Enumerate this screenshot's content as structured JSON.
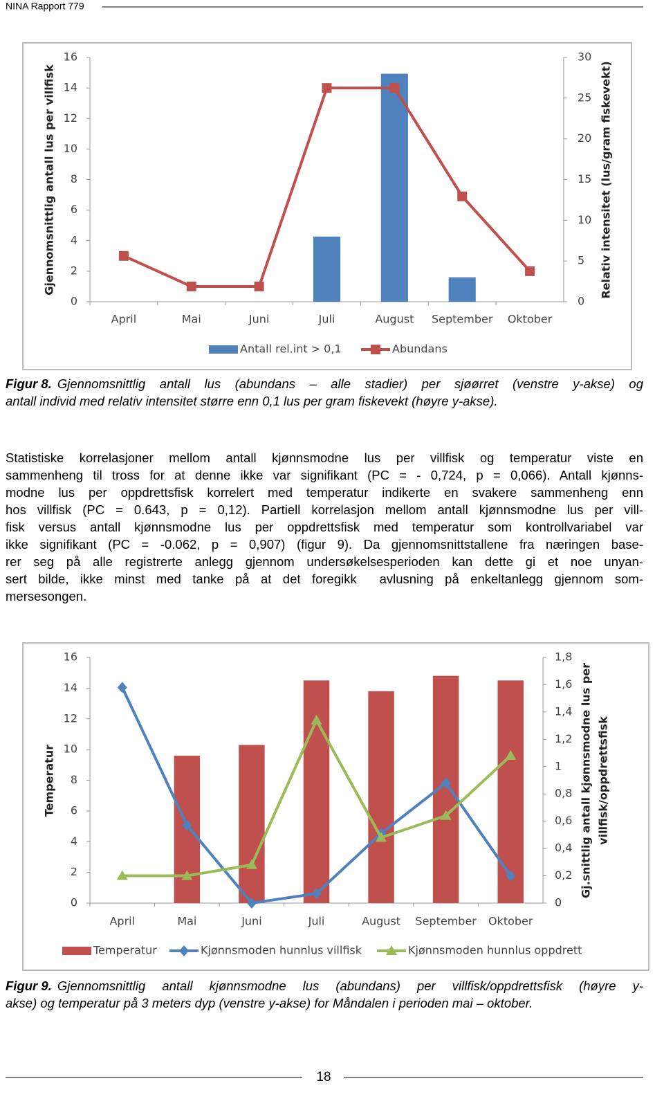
{
  "header": {
    "title": "NINA Rapport 779"
  },
  "chart_data": [
    {
      "type": "combo",
      "y_label": "Gjennomsnittlig antall lus per villfisk",
      "y2_label": "Relativ intensitet (lus/gram fiskevekt)",
      "categories": [
        "April",
        "Mai",
        "Juni",
        "Juli",
        "August",
        "September",
        "Oktober"
      ],
      "series": [
        {
          "name": "Antall rel.int > 0,1",
          "type": "bar",
          "axis": "y2",
          "color": "#4f81bd",
          "values": [
            null,
            null,
            null,
            8,
            28,
            3,
            null
          ]
        },
        {
          "name": "Abundans",
          "type": "line",
          "marker": "square",
          "color": "#c0504d",
          "values": [
            3,
            1,
            1,
            14,
            14,
            6.9,
            2
          ]
        }
      ],
      "ylim": [
        0,
        16
      ],
      "yticks": [
        0,
        2,
        4,
        6,
        8,
        10,
        12,
        14,
        16
      ],
      "y2lim": [
        0,
        30
      ],
      "y2ticks": [
        0,
        5,
        10,
        15,
        20,
        25,
        30
      ],
      "grid": false,
      "legend": "bottom"
    },
    {
      "type": "combo",
      "y_label": "Temperatur",
      "y2_label": [
        "Gj.snittlig antall kjønnsmodne lus per",
        "villfisk/oppdrettsfisk"
      ],
      "categories": [
        "April",
        "Mai",
        "Juni",
        "Juli",
        "August",
        "September",
        "Oktober"
      ],
      "series": [
        {
          "name": "Temperatur",
          "type": "bar",
          "color": "#c0504d",
          "values": [
            null,
            9.6,
            10.3,
            14.5,
            13.8,
            14.8,
            14.5
          ]
        },
        {
          "name": "Kjønnsmoden hunnlus villfisk",
          "type": "line",
          "marker": "diamond",
          "axis": "y2",
          "color": "#4f81bd",
          "values": [
            1.58,
            0.57,
            0,
            0.07,
            0.51,
            0.88,
            0.2
          ]
        },
        {
          "name": "Kjønnsmoden hunnlus oppdrett",
          "type": "line",
          "marker": "triangle",
          "axis": "y2",
          "color": "#9bbb59",
          "values": [
            0.2,
            0.2,
            0.28,
            1.34,
            0.48,
            0.64,
            1.08
          ]
        }
      ],
      "ylim": [
        0,
        16
      ],
      "yticks": [
        0,
        2,
        4,
        6,
        8,
        10,
        12,
        14,
        16
      ],
      "y2lim": [
        0,
        1.8
      ],
      "y2ticks": [
        0,
        {
          "value": 0.2,
          "label": "0,2"
        },
        {
          "value": 0.4,
          "label": "0,4"
        },
        {
          "value": 0.6,
          "label": "0,6"
        },
        {
          "value": 0.8,
          "label": "0,8"
        },
        1,
        {
          "value": 1.2,
          "label": "1,2"
        },
        {
          "value": 1.4,
          "label": "1,4"
        },
        {
          "value": 1.6,
          "label": "1,6"
        },
        {
          "value": 1.8,
          "label": "1,8"
        }
      ],
      "grid": false,
      "legend": "bottom"
    }
  ],
  "captions": [
    {
      "label": "Figur 8.",
      "lines": [
        "Gjennomsnittlig antall lus (abundans – alle stadier) per sjøørret (venstre y-akse) og",
        "antall individ med relativ intensitet større enn 0,1 lus per gram fiskevekt (høyre y-akse)."
      ]
    },
    {
      "label": "Figur 9.",
      "lines": [
        "Gjennomsnittlig antall kjønnsmodne lus (abundans) per villfisk/oppdrettsfisk (høyre y-",
        "akse) og temperatur på 3 meters dyp (venstre y-akse) for Måndalen i perioden mai – oktober."
      ]
    }
  ],
  "paragraph": {
    "lines": [
      "Statistiske korrelasjoner mellom antall kjønnsmodne lus per villfisk og temperatur viste en",
      "sammenheng til tross for at denne ikke var signifikant (PC = - 0,724, p = 0,066). Antall kjønns-",
      "modne lus per oppdrettsfisk korrelert med temperatur indikerte en svakere sammenheng enn",
      "hos villfisk (PC = 0.643, p = 0,12). Partiell korrelasjon mellom antall kjønnsmodne lus per vill-",
      "fisk versus antall kjønnsmodne lus per oppdrettsfisk med temperatur som kontrollvariabel var",
      "ikke signifikant (PC = -0.062, p = 0,907) (figur 9). Da gjennomsnittstallene fra næringen base-",
      "rer seg på alle registrerte anlegg gjennom undersøkelsesperioden kan dette gi et noe unyan-",
      "sert bilde, ikke minst med tanke på at det foregikk  avlusning på enkeltanlegg gjennom som-",
      "mersesongen."
    ]
  },
  "page_number": "18"
}
